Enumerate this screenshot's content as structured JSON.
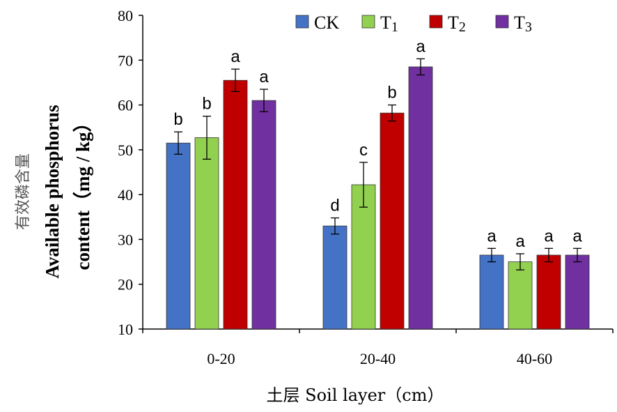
{
  "chart_data": {
    "type": "bar",
    "categories": [
      "0-20",
      "20-40",
      "40-60"
    ],
    "series": [
      {
        "name": "CK",
        "sub": "",
        "color": "#4472C4",
        "values": [
          51.5,
          33.0,
          26.5
        ],
        "errors": [
          2.5,
          1.8,
          1.5
        ],
        "labels": [
          "b",
          "d",
          "a"
        ]
      },
      {
        "name": "T",
        "sub": "1",
        "color": "#92D050",
        "values": [
          52.7,
          42.2,
          25.0
        ],
        "errors": [
          4.8,
          5.0,
          1.8
        ],
        "labels": [
          "b",
          "c",
          "a"
        ]
      },
      {
        "name": "T",
        "sub": "2",
        "color": "#C00000",
        "values": [
          65.5,
          58.2,
          26.5
        ],
        "errors": [
          2.5,
          1.8,
          1.5
        ],
        "labels": [
          "a",
          "b",
          "a"
        ]
      },
      {
        "name": "T",
        "sub": "3",
        "color": "#7030A0",
        "values": [
          61.0,
          68.5,
          26.5
        ],
        "errors": [
          2.5,
          1.8,
          1.5
        ],
        "labels": [
          "a",
          "a",
          "a"
        ]
      }
    ],
    "ylim": [
      10,
      80
    ],
    "yticks": [
      10,
      20,
      30,
      40,
      50,
      60,
      70,
      80
    ],
    "ylabel_cn": "有效磷含量",
    "ylabel_line1": "Available phosphorus",
    "ylabel_line2": "content（mg / kg）",
    "xlabel": "土层 Soil layer（cm）",
    "legend_position": "top-right",
    "grid": false
  }
}
